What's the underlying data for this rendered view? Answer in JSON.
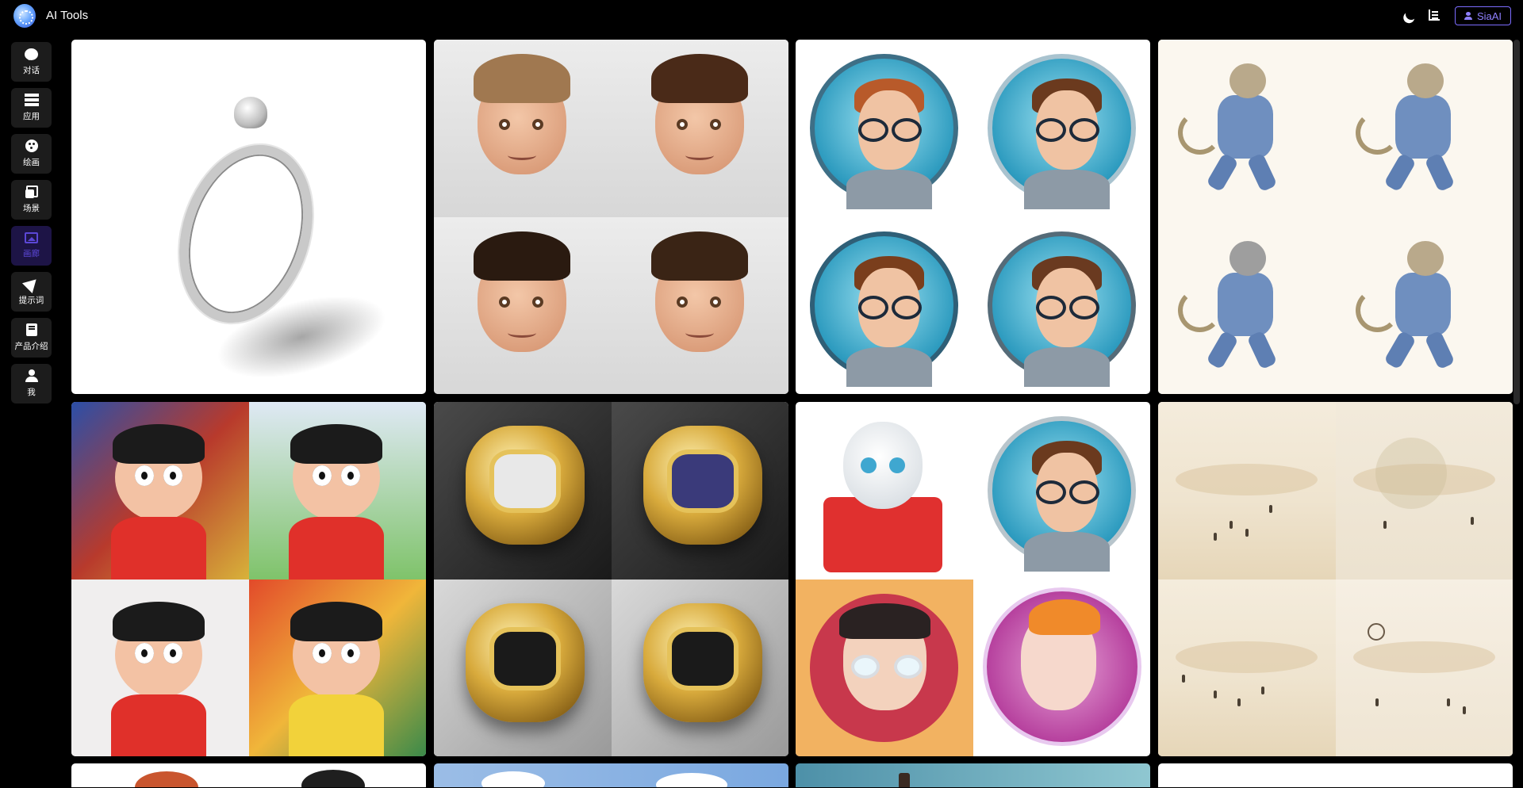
{
  "header": {
    "app_title": "AI Tools",
    "user_button_label": "SiaAI"
  },
  "sidebar": {
    "items": [
      {
        "id": "chat",
        "label": "对话",
        "icon": "chat-icon",
        "active": false
      },
      {
        "id": "apps",
        "label": "应用",
        "icon": "layers-icon",
        "active": false
      },
      {
        "id": "draw",
        "label": "绘画",
        "icon": "palette-icon",
        "active": false
      },
      {
        "id": "scene",
        "label": "场景",
        "icon": "clone-icon",
        "active": false
      },
      {
        "id": "gallery",
        "label": "画廊",
        "icon": "gallery-icon",
        "active": true
      },
      {
        "id": "prompts",
        "label": "提示词",
        "icon": "send-icon",
        "active": false
      },
      {
        "id": "intro",
        "label": "产品介绍",
        "icon": "book-icon",
        "active": false
      },
      {
        "id": "me",
        "label": "我",
        "icon": "user-icon",
        "active": false
      }
    ]
  },
  "gallery": {
    "cards": [
      {
        "subject": "silver ring"
      },
      {
        "subject": "cartoon boy faces"
      },
      {
        "subject": "avatar with glasses"
      },
      {
        "subject": "cat in denim"
      },
      {
        "subject": "cartoon kids illustration"
      },
      {
        "subject": "gold rings"
      },
      {
        "subject": "robot and avatars"
      },
      {
        "subject": "watercolor beach"
      }
    ]
  },
  "colors": {
    "accent": "#7c6cff",
    "active_sidebar_bg": "#1d1446",
    "sidebar_item_bg": "#1c1c1c",
    "page_bg": "#000000"
  }
}
